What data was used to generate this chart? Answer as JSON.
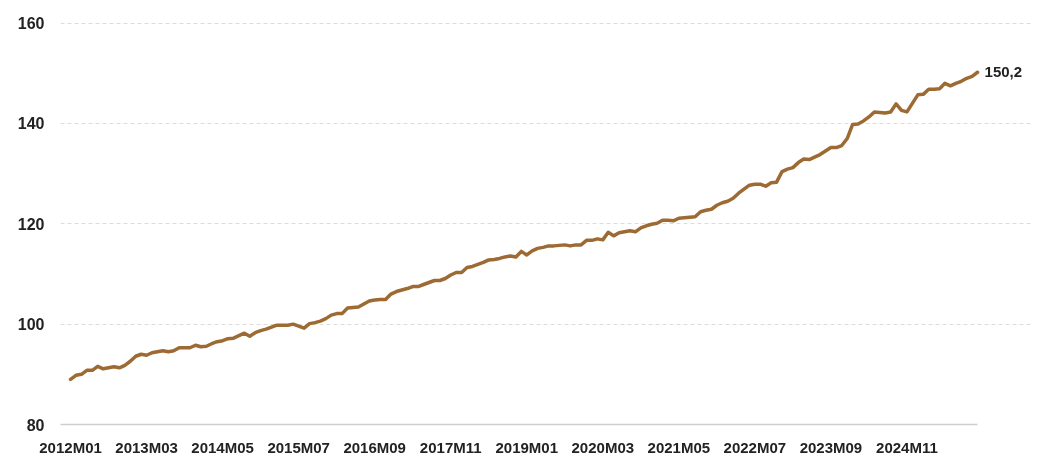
{
  "chart_data": {
    "type": "line",
    "categories": [
      "2012M01",
      null,
      null,
      null,
      null,
      null,
      null,
      null,
      null,
      null,
      null,
      null,
      null,
      null,
      "2013M03",
      null,
      null,
      null,
      null,
      null,
      null,
      null,
      null,
      null,
      null,
      null,
      null,
      null,
      "2014M05",
      null,
      null,
      null,
      null,
      null,
      null,
      null,
      null,
      null,
      null,
      null,
      null,
      null,
      "2015M07",
      null,
      null,
      null,
      null,
      null,
      null,
      null,
      null,
      null,
      null,
      null,
      null,
      null,
      "2016M09",
      null,
      null,
      null,
      null,
      null,
      null,
      null,
      null,
      null,
      null,
      null,
      null,
      null,
      "2017M11",
      null,
      null,
      null,
      null,
      null,
      null,
      null,
      null,
      null,
      null,
      null,
      null,
      null,
      "2019M01",
      null,
      null,
      null,
      null,
      null,
      null,
      null,
      null,
      null,
      null,
      null,
      null,
      null,
      "2020M03",
      null,
      null,
      null,
      null,
      null,
      null,
      null,
      null,
      null,
      null,
      null,
      null,
      null,
      "2021M05",
      null,
      null,
      null,
      null,
      null,
      null,
      null,
      null,
      null,
      null,
      null,
      null,
      null,
      "2022M07",
      null,
      null,
      null,
      null,
      null,
      null,
      null,
      null,
      null,
      null,
      null,
      null,
      null,
      "2023M09",
      null,
      null,
      null,
      null,
      null,
      null,
      null,
      null,
      null,
      null,
      null,
      null,
      null,
      "2024M11",
      null,
      null,
      null,
      null,
      null,
      null,
      null,
      null,
      null,
      null,
      null,
      null,
      null
    ],
    "color": "#9c6a32",
    "values": [
      89.0,
      89.8,
      90.0,
      90.8,
      90.8,
      91.6,
      91.1,
      91.3,
      91.5,
      91.3,
      91.8,
      92.6,
      93.6,
      94.0,
      93.8,
      94.3,
      94.5,
      94.7,
      94.5,
      94.7,
      95.3,
      95.3,
      95.3,
      95.8,
      95.5,
      95.6,
      96.1,
      96.5,
      96.7,
      97.1,
      97.2,
      97.7,
      98.2,
      97.6,
      98.3,
      98.7,
      99.0,
      99.4,
      99.8,
      99.8,
      99.8,
      100.0,
      99.6,
      99.2,
      100.1,
      100.3,
      100.6,
      101.1,
      101.8,
      102.1,
      102.1,
      103.2,
      103.3,
      103.4,
      104.0,
      104.6,
      104.8,
      104.9,
      104.9,
      106.0,
      106.5,
      106.8,
      107.1,
      107.5,
      107.5,
      107.9,
      108.3,
      108.7,
      108.7,
      109.1,
      109.8,
      110.3,
      110.3,
      111.3,
      111.5,
      111.9,
      112.3,
      112.8,
      112.9,
      113.1,
      113.4,
      113.6,
      113.4,
      114.5,
      113.8,
      114.6,
      115.1,
      115.3,
      115.6,
      115.6,
      115.7,
      115.8,
      115.6,
      115.8,
      115.8,
      116.7,
      116.7,
      117.0,
      116.8,
      118.3,
      117.6,
      118.2,
      118.4,
      118.6,
      118.4,
      119.2,
      119.6,
      119.9,
      120.1,
      120.7,
      120.7,
      120.6,
      121.1,
      121.2,
      121.3,
      121.4,
      122.4,
      122.7,
      122.9,
      123.7,
      124.2,
      124.5,
      125.1,
      126.1,
      126.9,
      127.7,
      127.9,
      127.9,
      127.5,
      128.2,
      128.3,
      130.4,
      130.9,
      131.2,
      132.2,
      132.9,
      132.8,
      133.3,
      133.8,
      134.5,
      135.2,
      135.2,
      135.6,
      137.0,
      139.8,
      139.9,
      140.5,
      141.3,
      142.3,
      142.2,
      142.1,
      142.3,
      143.9,
      142.6,
      142.3,
      144.0,
      145.7,
      145.8,
      146.8,
      146.8,
      146.9,
      148.0,
      147.5,
      148.0,
      148.4,
      149.0,
      149.4,
      150.2
    ],
    "value_labels": [
      null,
      null,
      null,
      null,
      null,
      null,
      null,
      null,
      null,
      null,
      null,
      null,
      null,
      null,
      null,
      null,
      null,
      null,
      null,
      null,
      null,
      null,
      null,
      null,
      null,
      null,
      null,
      null,
      null,
      null,
      null,
      null,
      null,
      null,
      null,
      null,
      null,
      null,
      null,
      null,
      null,
      null,
      null,
      null,
      null,
      null,
      null,
      null,
      null,
      null,
      null,
      null,
      null,
      null,
      null,
      null,
      null,
      null,
      null,
      null,
      null,
      null,
      null,
      null,
      null,
      null,
      null,
      null,
      null,
      null,
      null,
      null,
      null,
      null,
      null,
      null,
      null,
      null,
      null,
      null,
      null,
      null,
      null,
      null,
      null,
      null,
      null,
      null,
      null,
      null,
      null,
      null,
      null,
      null,
      null,
      null,
      null,
      null,
      null,
      null,
      null,
      null,
      null,
      null,
      null,
      null,
      null,
      null,
      null,
      null,
      null,
      null,
      null,
      null,
      null,
      null,
      null,
      null,
      null,
      null,
      null,
      null,
      null,
      null,
      null,
      null,
      null,
      null,
      null,
      null,
      null,
      null,
      null,
      null,
      null,
      null,
      null,
      null,
      null,
      null,
      null,
      null,
      null,
      null,
      null,
      null,
      null,
      null,
      null,
      null,
      null,
      null,
      null,
      null,
      null,
      null,
      null,
      null,
      null,
      null,
      null,
      null,
      null,
      null,
      null,
      null,
      null,
      "150,2"
    ],
    "ylim": [
      80,
      160
    ],
    "yticks": [
      80,
      100,
      120,
      140,
      160
    ],
    "grid": "y"
  }
}
